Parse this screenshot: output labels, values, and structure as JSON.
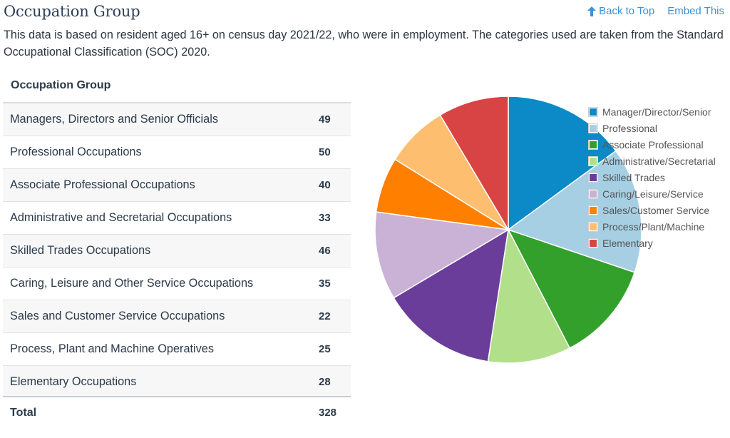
{
  "header": {
    "title": "Occupation Group",
    "back_to_top": "Back to Top",
    "embed": "Embed This"
  },
  "description": "This data is based on resident aged 16+ on census day 2021/22, who were in employment. The categories used are taken from the Standard Occupational Classification (SOC) 2020.",
  "table": {
    "title": "Occupation Group",
    "rows": [
      {
        "label": "Managers, Directors and Senior Officials",
        "value": "49"
      },
      {
        "label": "Professional Occupations",
        "value": "50"
      },
      {
        "label": "Associate Professional Occupations",
        "value": "40"
      },
      {
        "label": "Administrative and Secretarial Occupations",
        "value": "33"
      },
      {
        "label": "Skilled Trades Occupations",
        "value": "46"
      },
      {
        "label": "Caring, Leisure and Other Service Occupations",
        "value": "35"
      },
      {
        "label": "Sales and Customer Service Occupations",
        "value": "22"
      },
      {
        "label": "Process, Plant and Machine Operatives",
        "value": "25"
      },
      {
        "label": "Elementary Occupations",
        "value": "28"
      }
    ],
    "total_label": "Total",
    "total_value": "328"
  },
  "chart_data": {
    "type": "pie",
    "categories": [
      "Manager/Director/Senior",
      "Professional",
      "Associate Professional",
      "Administrative/Secretarial",
      "Skilled Trades",
      "Caring/Leisure/Service",
      "Sales/Customer Service",
      "Process/Plant/Machine",
      "Elementary"
    ],
    "values": [
      49,
      50,
      40,
      33,
      46,
      35,
      22,
      25,
      28
    ],
    "colors": [
      "#0b8ac7",
      "#a6cfe3",
      "#33a02c",
      "#b2df8a",
      "#6a3d9a",
      "#cab2d6",
      "#ff7f00",
      "#fdbf6f",
      "#d84343"
    ],
    "legend_position": "top-right"
  },
  "icons": {
    "back_to_top": "up-arrow-icon"
  }
}
